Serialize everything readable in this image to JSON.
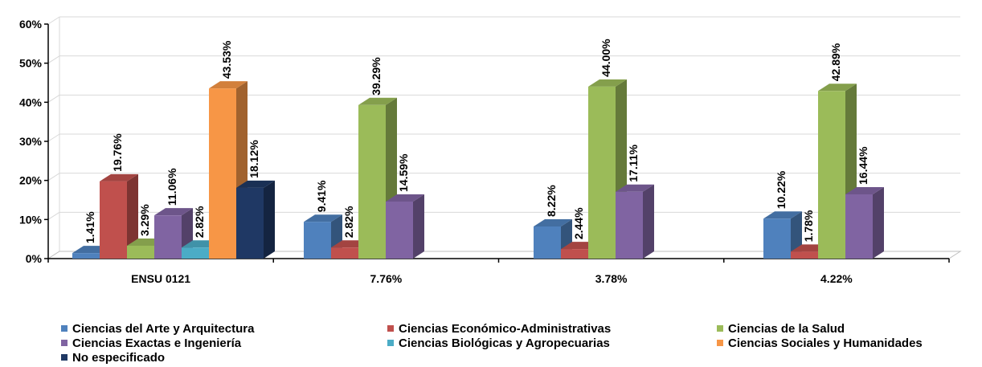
{
  "chart_data": {
    "type": "bar",
    "title": "",
    "xlabel": "",
    "ylabel": "",
    "ylim": [
      0,
      60
    ],
    "y_ticks": [
      "0%",
      "10%",
      "20%",
      "30%",
      "40%",
      "50%",
      "60%"
    ],
    "y_tick_values": [
      0,
      10,
      20,
      30,
      40,
      50,
      60
    ],
    "categories": [
      "ENSU 0121",
      "7.76%",
      "3.78%",
      "4.22%"
    ],
    "grid": true,
    "legend_position": "bottom",
    "series": [
      {
        "name": "Ciencias del Arte y Arquitectura",
        "color": "#4F81BD",
        "values": [
          1.41,
          9.41,
          8.22,
          10.22
        ],
        "labels": [
          "1.41%",
          "9.41%",
          "8.22%",
          "10.22%"
        ]
      },
      {
        "name": "Ciencias Económico-Administrativas",
        "color": "#C0504D",
        "values": [
          19.76,
          2.82,
          2.44,
          1.78
        ],
        "labels": [
          "19.76%",
          "2.82%",
          "2.44%",
          "1.78%"
        ]
      },
      {
        "name": "Ciencias de la Salud",
        "color": "#9BBB59",
        "values": [
          3.29,
          39.29,
          44.0,
          42.89
        ],
        "labels": [
          "3.29%",
          "39.29%",
          "44.00%",
          "42.89%"
        ]
      },
      {
        "name": "Ciencias Exactas e Ingeniería",
        "color": "#8064A2",
        "values": [
          11.06,
          14.59,
          17.11,
          16.44
        ],
        "labels": [
          "11.06%",
          "14.59%",
          "17.11%",
          "16.44%"
        ]
      },
      {
        "name": "Ciencias Biológicas y Agropecuarias",
        "color": "#4BACC6",
        "values": [
          2.82,
          null,
          null,
          null
        ],
        "labels": [
          "2.82%",
          "",
          "",
          ""
        ]
      },
      {
        "name": "Ciencias Sociales y Humanidades",
        "color": "#F79646",
        "values": [
          43.53,
          null,
          null,
          null
        ],
        "labels": [
          "43.53%",
          "",
          "",
          ""
        ]
      },
      {
        "name": "No especificado",
        "color": "#1F3864",
        "values": [
          18.12,
          null,
          null,
          null
        ],
        "labels": [
          "18.12%",
          "",
          "",
          ""
        ]
      }
    ]
  }
}
